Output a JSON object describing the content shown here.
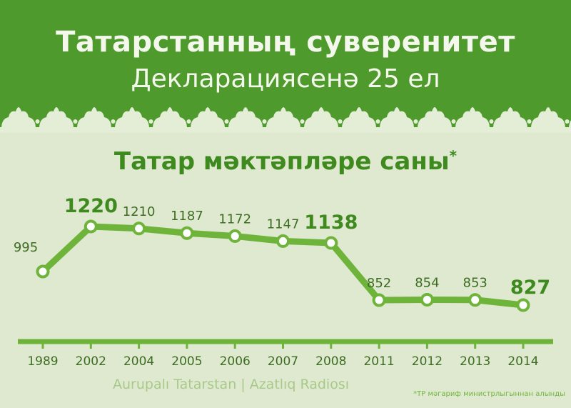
{
  "header": {
    "title": "Татарстанның суверенитет",
    "subtitle": "Декларациясенә 25 ел"
  },
  "chart_title": "Татар мәктәпләре саны",
  "chart_title_mark": "*",
  "credit": "Aurupalı Tatarstan | Azatlıq Radiosı",
  "footnote": "*ТР мәгариф министрлыгыннан алынды",
  "colors": {
    "header_bg": "#4f9a2c",
    "page_bg": "#dfe9cf",
    "line": "#6fb43a",
    "marker_fill": "#ffffff",
    "text_dark": "#3d6d22",
    "accent": "#3f8a1f"
  },
  "chart_data": {
    "type": "line",
    "categories": [
      "1989",
      "2002",
      "2004",
      "2005",
      "2006",
      "2007",
      "2008",
      "2011",
      "2012",
      "2013",
      "2014"
    ],
    "values": [
      995,
      1220,
      1210,
      1187,
      1172,
      1147,
      1138,
      852,
      854,
      853,
      827
    ],
    "highlighted": [
      "2002",
      "2008",
      "2014"
    ],
    "grid": false,
    "legend": "none"
  }
}
